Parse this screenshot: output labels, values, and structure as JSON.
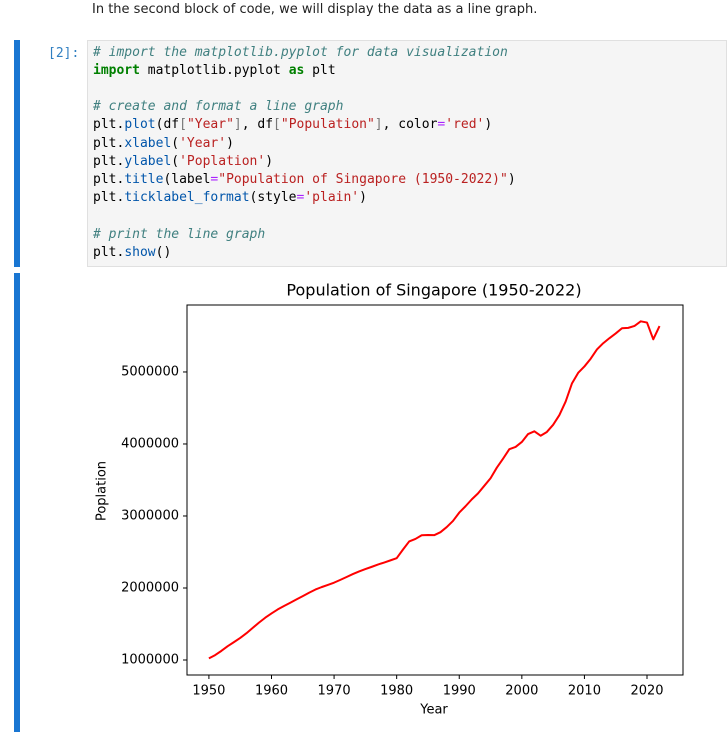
{
  "intro": "In the second block of code, we will display the data as a line graph.",
  "cell": {
    "prompt": "[2]:",
    "lines": [
      [
        {
          "text": "# import the matplotlib.pyplot for data visualization",
          "color": "#408080",
          "style": "italic"
        }
      ],
      [
        {
          "text": "import",
          "color": "#008000",
          "style": "bold"
        },
        {
          "text": " matplotlib.pyplot "
        },
        {
          "text": "as",
          "color": "#008000",
          "style": "bold"
        },
        {
          "text": " plt"
        }
      ],
      [],
      [
        {
          "text": "# create and format a line graph",
          "color": "#408080",
          "style": "italic"
        }
      ],
      [
        {
          "text": "plt."
        },
        {
          "text": "plot",
          "color": "#0055aa"
        },
        {
          "text": "(df"
        },
        {
          "text": "[",
          "color": "#777777"
        },
        {
          "text": "\"Year\"",
          "color": "#ba2121"
        },
        {
          "text": "]",
          "color": "#777777"
        },
        {
          "text": ", df"
        },
        {
          "text": "[",
          "color": "#777777"
        },
        {
          "text": "\"Population\"",
          "color": "#ba2121"
        },
        {
          "text": "]",
          "color": "#777777"
        },
        {
          "text": ", color"
        },
        {
          "text": "=",
          "color": "#aa22ff"
        },
        {
          "text": "'red'",
          "color": "#ba2121"
        },
        {
          "text": ")"
        }
      ],
      [
        {
          "text": "plt."
        },
        {
          "text": "xlabel",
          "color": "#0055aa"
        },
        {
          "text": "("
        },
        {
          "text": "'Year'",
          "color": "#ba2121"
        },
        {
          "text": ")"
        }
      ],
      [
        {
          "text": "plt."
        },
        {
          "text": "ylabel",
          "color": "#0055aa"
        },
        {
          "text": "("
        },
        {
          "text": "'Poplation'",
          "color": "#ba2121"
        },
        {
          "text": ")"
        }
      ],
      [
        {
          "text": "plt."
        },
        {
          "text": "title",
          "color": "#0055aa"
        },
        {
          "text": "(label"
        },
        {
          "text": "=",
          "color": "#aa22ff"
        },
        {
          "text": "\"Population of Singapore (1950-2022)\"",
          "color": "#ba2121"
        },
        {
          "text": ")"
        }
      ],
      [
        {
          "text": "plt."
        },
        {
          "text": "ticklabel_format",
          "color": "#0055aa"
        },
        {
          "text": "(style"
        },
        {
          "text": "=",
          "color": "#aa22ff"
        },
        {
          "text": "'plain'",
          "color": "#ba2121"
        },
        {
          "text": ")"
        }
      ],
      [],
      [
        {
          "text": "# print the line graph",
          "color": "#408080",
          "style": "italic"
        }
      ],
      [
        {
          "text": "plt."
        },
        {
          "text": "show",
          "color": "#0055aa"
        },
        {
          "text": "()"
        }
      ]
    ]
  },
  "chart_data": {
    "type": "line",
    "title": "Population of Singapore (1950-2022)",
    "x_label": "Year",
    "y_label": "Poplation",
    "color": "red",
    "x": [
      1950,
      1951,
      1952,
      1953,
      1954,
      1955,
      1956,
      1957,
      1958,
      1959,
      1960,
      1961,
      1962,
      1963,
      1964,
      1965,
      1966,
      1967,
      1968,
      1969,
      1970,
      1971,
      1972,
      1973,
      1974,
      1975,
      1976,
      1977,
      1978,
      1979,
      1980,
      1981,
      1982,
      1983,
      1984,
      1985,
      1986,
      1987,
      1988,
      1989,
      1990,
      1991,
      1992,
      1993,
      1994,
      1995,
      1996,
      1997,
      1998,
      1999,
      2000,
      2001,
      2002,
      2003,
      2004,
      2005,
      2006,
      2007,
      2008,
      2009,
      2010,
      2011,
      2012,
      2013,
      2014,
      2015,
      2016,
      2017,
      2018,
      2019,
      2020,
      2021,
      2022
    ],
    "values": [
      1022100,
      1068100,
      1127000,
      1192000,
      1248000,
      1306000,
      1372000,
      1446000,
      1519000,
      1587000,
      1646400,
      1702400,
      1750200,
      1795000,
      1841600,
      1886900,
      1934400,
      1977600,
      2012000,
      2042500,
      2074500,
      2112900,
      2152400,
      2193000,
      2229800,
      2262600,
      2293300,
      2325300,
      2353600,
      2383500,
      2413900,
      2532800,
      2646500,
      2681100,
      2732200,
      2736000,
      2733400,
      2774800,
      2846100,
      2930900,
      3047100,
      3135100,
      3230700,
      3313500,
      3419000,
      3524500,
      3670700,
      3796000,
      3927200,
      3958700,
      4027900,
      4138000,
      4175900,
      4114800,
      4166700,
      4265800,
      4401400,
      4588600,
      4839400,
      4987600,
      5076700,
      5183700,
      5312400,
      5399200,
      5469700,
      5535000,
      5607300,
      5612300,
      5638700,
      5703600,
      5685800,
      5453600,
      5637000
    ],
    "xlim": [
      1946.5,
      2025.75
    ],
    "ylim": [
      791700,
      5930000
    ],
    "xticks": [
      1950,
      1960,
      1970,
      1980,
      1990,
      2000,
      2010,
      2020
    ],
    "yticks": [
      1000000,
      2000000,
      3000000,
      4000000,
      5000000
    ]
  }
}
